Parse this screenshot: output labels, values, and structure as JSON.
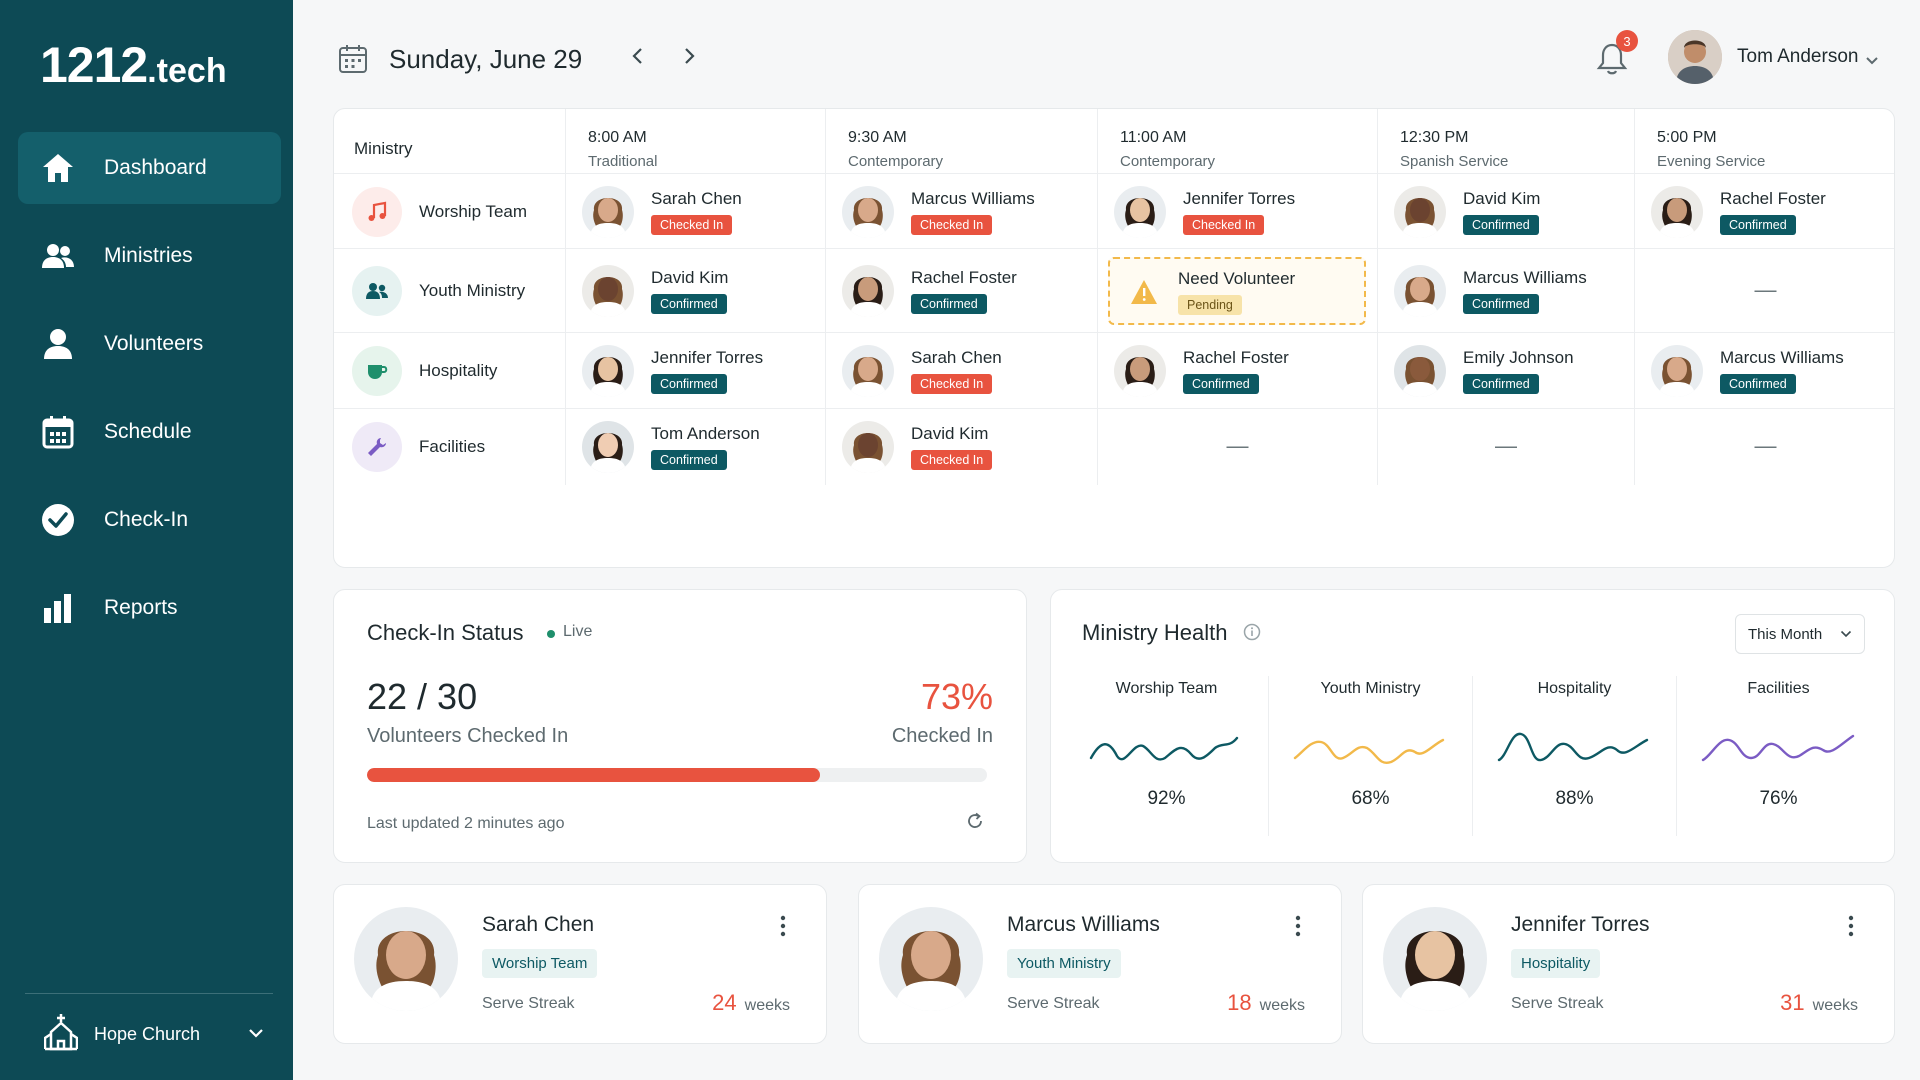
{
  "brand": {
    "main": "1212",
    "suffix": ".tech"
  },
  "nav": [
    {
      "label": "Dashboard",
      "icon": "home-icon",
      "active": true
    },
    {
      "label": "Ministries",
      "icon": "users-icon"
    },
    {
      "label": "Volunteers",
      "icon": "user-icon"
    },
    {
      "label": "Schedule",
      "icon": "calendar-icon"
    },
    {
      "label": "Check-In",
      "icon": "check-circle-icon"
    },
    {
      "label": "Reports",
      "icon": "bar-chart-icon"
    }
  ],
  "church": {
    "label": "Hope Church",
    "icon": "church-icon"
  },
  "header": {
    "date": "Sunday, June 29",
    "notifications": "3",
    "user_name": "Tom Anderson"
  },
  "schedule": {
    "ministry_header": "Ministry",
    "services": [
      {
        "time": "8:00 AM",
        "name": "Traditional"
      },
      {
        "time": "9:30 AM",
        "name": "Contemporary"
      },
      {
        "time": "11:00 AM",
        "name": "Contemporary"
      },
      {
        "time": "12:30 PM",
        "name": "Spanish Service"
      },
      {
        "time": "5:00 PM",
        "name": "Evening Service"
      }
    ],
    "rows": [
      {
        "ministry": "Worship Team",
        "icon": "music-note-icon",
        "slots": [
          {
            "name": "Sarah Chen",
            "status": "Checked In"
          },
          {
            "name": "Marcus Williams",
            "status": "Checked In"
          },
          {
            "name": "Jennifer Torres",
            "status": "Checked In"
          },
          {
            "name": "David Kim",
            "status": "Confirmed"
          },
          {
            "name": "Rachel Foster",
            "status": "Confirmed"
          }
        ]
      },
      {
        "ministry": "Youth Ministry",
        "icon": "users-icon",
        "slots": [
          {
            "name": "David Kim",
            "status": "Confirmed"
          },
          {
            "name": "Rachel Foster",
            "status": "Confirmed"
          },
          {
            "name": "Need Volunteer",
            "status": "Pending"
          },
          {
            "name": "Marcus Williams",
            "status": "Confirmed"
          },
          {
            "empty": "—"
          }
        ]
      },
      {
        "ministry": "Hospitality",
        "icon": "coffee-cup-icon",
        "slots": [
          {
            "name": "Jennifer Torres",
            "status": "Confirmed"
          },
          {
            "name": "Sarah Chen",
            "status": "Checked In"
          },
          {
            "name": "Rachel Foster",
            "status": "Confirmed"
          },
          {
            "name": "Emily Johnson",
            "status": "Confirmed"
          },
          {
            "name": "Marcus Williams",
            "status": "Confirmed"
          }
        ]
      },
      {
        "ministry": "Facilities",
        "icon": "wrench-icon",
        "slots": [
          {
            "name": "Tom Anderson",
            "status": "Confirmed"
          },
          {
            "name": "David Kim",
            "status": "Checked In"
          },
          {
            "empty": "—"
          },
          {
            "empty": "—"
          },
          {
            "empty": "—"
          }
        ]
      }
    ]
  },
  "checkin": {
    "title": "Check-In Status",
    "live": "Live",
    "count": "22 / 30",
    "count_label": "Volunteers Checked In",
    "percent": "73%",
    "percent_label": "Checked In",
    "progress": 0.73,
    "updated": "Last updated 2 minutes ago"
  },
  "health": {
    "title": "Ministry Health",
    "filter": "This Month",
    "items": [
      {
        "name": "Worship Team",
        "value": "92%",
        "color": "#0d5963"
      },
      {
        "name": "Youth Ministry",
        "value": "68%",
        "color": "#f2b94a"
      },
      {
        "name": "Hospitality",
        "value": "88%",
        "color": "#0d5963"
      },
      {
        "name": "Facilities",
        "value": "76%",
        "color": "#7b5cc4"
      }
    ]
  },
  "volunteer_cards": [
    {
      "name": "Sarah Chen",
      "ministry": "Worship Team",
      "streak_label": "Serve Streak",
      "weeks": "24",
      "weeks_unit": "weeks"
    },
    {
      "name": "Marcus Williams",
      "ministry": "Youth Ministry",
      "streak_label": "Serve Streak",
      "weeks": "18",
      "weeks_unit": "weeks"
    },
    {
      "name": "Jennifer Torres",
      "ministry": "Hospitality",
      "streak_label": "Serve Streak",
      "weeks": "31",
      "weeks_unit": "weeks"
    }
  ],
  "colors": {
    "sidebar": "#0d4a55",
    "accent": "#e8533f",
    "confirmed": "#0d5963",
    "pending": "#f2b94a"
  }
}
